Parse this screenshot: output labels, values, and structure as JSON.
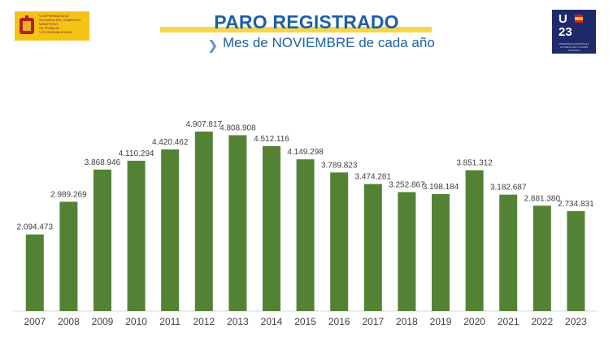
{
  "header": {
    "title": "PARO REGISTRADO",
    "subtitle": "Mes de NOVIEMBRE de cada año",
    "left_logo_lines": [
      "VICEPRESIDENCIA",
      "SEGUNDA DEL GOBIERNO",
      "MINISTERIO",
      "DE TRABAJO",
      "Y ECONOMÍA SOCIAL"
    ],
    "right_logo": {
      "letter": "U",
      "number": "23",
      "small": "PRESIDENCIA ESPAÑOLA CONSEJO DE LA UNIÓN EUROPEA"
    }
  },
  "colors": {
    "bar": "#548235",
    "title": "#1d5fa5",
    "band": "#f5d64a",
    "logo_left": "#f3c318",
    "logo_right": "#1f2a6b"
  },
  "chart_data": {
    "type": "bar",
    "categories": [
      "2007",
      "2008",
      "2009",
      "2010",
      "2011",
      "2012",
      "2013",
      "2014",
      "2015",
      "2016",
      "2017",
      "2018",
      "2019",
      "2020",
      "2021",
      "2022",
      "2023"
    ],
    "values": [
      2094473,
      2989269,
      3868946,
      4110294,
      4420462,
      4907817,
      4808908,
      4512116,
      4149298,
      3789823,
      3474281,
      3252867,
      3198184,
      3851312,
      3182687,
      2881380,
      2734831
    ],
    "data_labels": [
      "2.094.473",
      "2.989.269",
      "3.868.946",
      "4.110.294",
      "4.420.462",
      "4.907.817",
      "4.808.908",
      "4.512.116",
      "4.149.298",
      "3.789.823",
      "3.474.281",
      "3.252.867",
      "3.198.184",
      "3.851.312",
      "3.182.687",
      "2.881.380",
      "2.734.831"
    ],
    "title": "PARO REGISTRADO",
    "subtitle": "Mes de NOVIEMBRE de cada año",
    "ylim": [
      0,
      5000000
    ],
    "grid": false,
    "legend": "none"
  }
}
